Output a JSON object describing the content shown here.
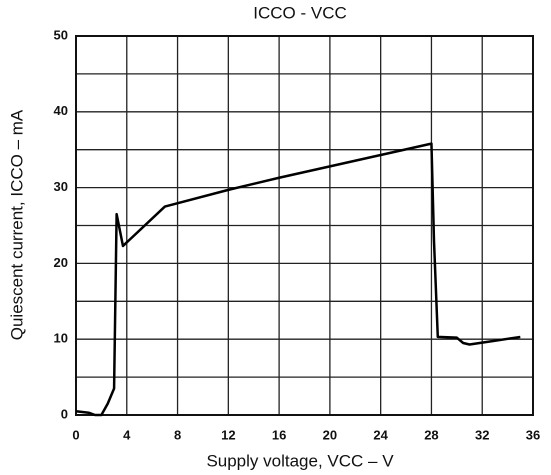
{
  "chart_data": {
    "type": "line",
    "title": "ICCO - VCC",
    "x_label": "Supply voltage, VCC – V",
    "y_label": "Quiescent current, ICCO – mA",
    "x": [
      0,
      1,
      1.5,
      2,
      2.5,
      3,
      3.2,
      3.7,
      7,
      12,
      16,
      20,
      24,
      28,
      28.2,
      28.5,
      30,
      30.5,
      31,
      33,
      35
    ],
    "series": [
      {
        "name": "ICCO",
        "color": "#000000",
        "values": [
          0.5,
          0.3,
          0,
          0,
          1.5,
          3.5,
          26.5,
          22.3,
          27.5,
          29.7,
          31.3,
          32.8,
          34.3,
          35.8,
          23,
          10.3,
          10.2,
          9.5,
          9.3,
          9.8,
          10.3
        ]
      }
    ],
    "xlim": [
      0,
      36
    ],
    "xticks": [
      0,
      4,
      8,
      12,
      16,
      20,
      24,
      28,
      32,
      36
    ],
    "ylim": [
      0,
      50
    ],
    "yticks": [
      0,
      10,
      20,
      30,
      40,
      50
    ],
    "yminorticks": [
      5,
      15,
      25,
      35,
      45
    ],
    "grid": true
  }
}
